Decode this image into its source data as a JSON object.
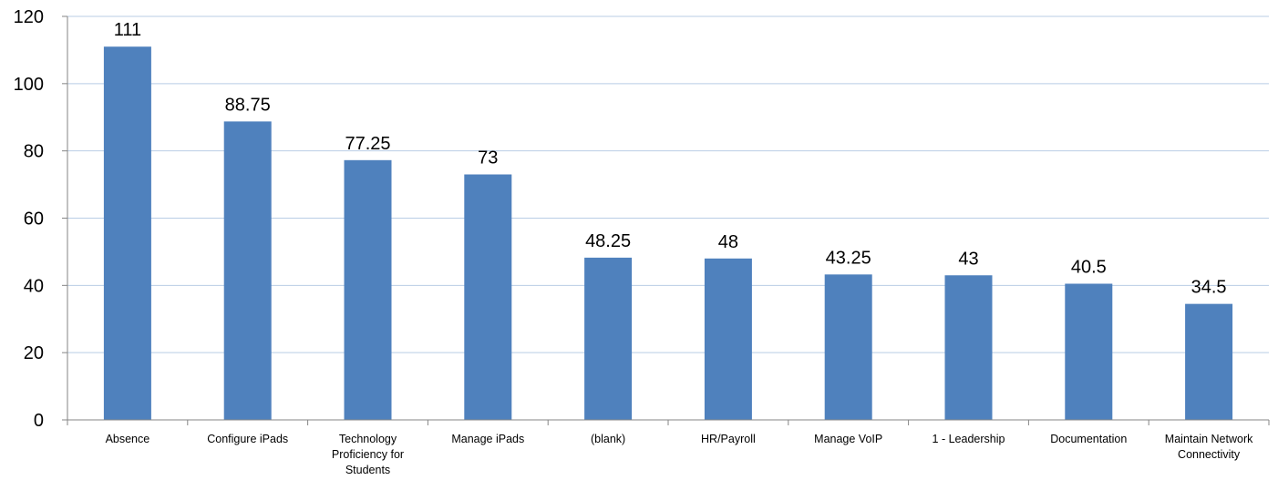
{
  "chart_data": {
    "type": "bar",
    "categories": [
      "Absence",
      "Configure iPads",
      "Technology Proficiency for Students",
      "Manage iPads",
      "(blank)",
      "HR/Payroll",
      "Manage VoIP",
      "1 - Leadership",
      "Documentation",
      "Maintain Network Connectivity"
    ],
    "category_lines": [
      [
        "Absence"
      ],
      [
        "Configure iPads"
      ],
      [
        "Technology",
        "Proficiency for",
        "Students"
      ],
      [
        "Manage iPads"
      ],
      [
        "(blank)"
      ],
      [
        "HR/Payroll"
      ],
      [
        "Manage VoIP"
      ],
      [
        "1 - Leadership"
      ],
      [
        "Documentation"
      ],
      [
        "Maintain Network",
        "Connectivity"
      ]
    ],
    "values": [
      111,
      88.75,
      77.25,
      73,
      48.25,
      48,
      43.25,
      43,
      40.5,
      34.5
    ],
    "data_labels": [
      "111",
      "88.75",
      "77.25",
      "73",
      "48.25",
      "48",
      "43.25",
      "43",
      "40.5",
      "34.5"
    ],
    "title": "",
    "xlabel": "",
    "ylabel": "",
    "ylim": [
      0,
      120
    ],
    "yticks": [
      0,
      20,
      40,
      60,
      80,
      100,
      120
    ],
    "grid": true,
    "legend": "none",
    "colors": {
      "bar": "#4f81bd",
      "grid": "#b9cde5",
      "axis": "#868686",
      "text": "#000000"
    }
  }
}
